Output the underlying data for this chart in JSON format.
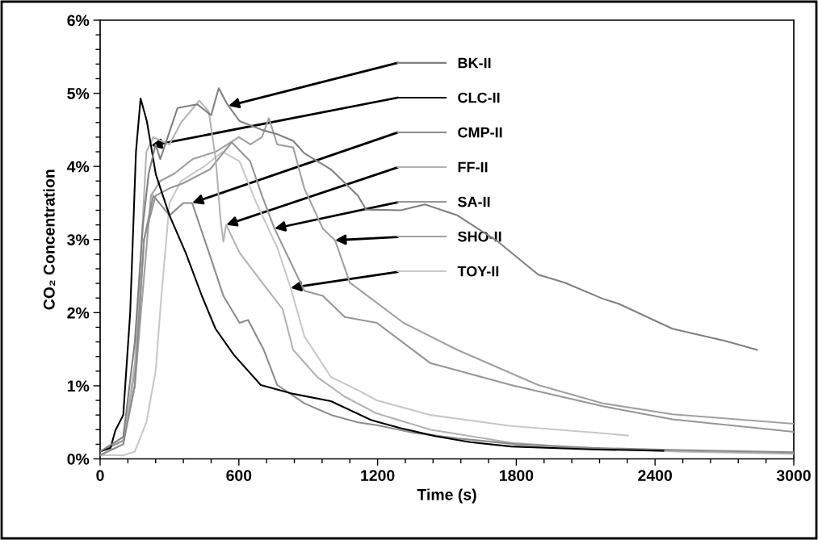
{
  "chart_data": {
    "type": "line",
    "xlabel": "Time (s)",
    "ylabel": "CO₂ Concentration",
    "xlim": [
      0,
      3000
    ],
    "xticks": [
      0,
      600,
      1200,
      1800,
      2400,
      3000
    ],
    "ylim": [
      0,
      6
    ],
    "yticks": [
      {
        "value": 0,
        "label": "0%"
      },
      {
        "value": 1,
        "label": "1%"
      },
      {
        "value": 2,
        "label": "2%"
      },
      {
        "value": 3,
        "label": "3%"
      },
      {
        "value": 4,
        "label": "4%"
      },
      {
        "value": 5,
        "label": "5%"
      },
      {
        "value": 6,
        "label": "6%"
      }
    ],
    "grid": false,
    "legend": "top",
    "marker": "none",
    "line_style": "solid",
    "series": [
      {
        "name": "BK-II",
        "color": "#808080",
        "x": [
          0,
          100,
          150,
          185,
          210,
          240,
          260,
          335,
          420,
          480,
          513,
          550,
          603,
          700,
          766,
          835,
          883,
          998,
          1115,
          1150,
          1300,
          1405,
          1545,
          1721,
          1895,
          2010,
          2174,
          2244,
          2475,
          2709,
          2841
        ],
        "values": [
          0.1,
          0.3,
          1.6,
          3.2,
          3.9,
          4.3,
          4.1,
          4.8,
          4.85,
          4.7,
          5.07,
          4.85,
          4.62,
          4.5,
          4.44,
          4.35,
          4.18,
          3.96,
          3.6,
          3.41,
          3.4,
          3.48,
          3.33,
          2.97,
          2.52,
          2.41,
          2.19,
          2.12,
          1.78,
          1.61,
          1.49
        ]
      },
      {
        "name": "CLC-II",
        "color": "#000000",
        "x": [
          0,
          45,
          66,
          100,
          130,
          155,
          175,
          202,
          241,
          300,
          370,
          440,
          499,
          579,
          695,
          835,
          998,
          1173,
          1300,
          1452,
          1600,
          1777,
          2126,
          2436
        ],
        "values": [
          0.1,
          0.15,
          0.39,
          0.6,
          2.0,
          4.2,
          4.93,
          4.62,
          3.89,
          3.33,
          2.82,
          2.23,
          1.78,
          1.42,
          1.01,
          0.89,
          0.79,
          0.53,
          0.42,
          0.31,
          0.23,
          0.17,
          0.13,
          0.11
        ]
      },
      {
        "name": "CMP-II",
        "color": "#8c8c8c",
        "x": [
          0,
          100,
          150,
          190,
          230,
          300,
          360,
          398,
          430,
          475,
          533,
          603,
          640,
          708,
          766,
          883,
          1000,
          1115,
          1197,
          1350,
          1545,
          1800,
          2126,
          2500,
          3000
        ],
        "values": [
          0.05,
          0.2,
          1.0,
          3.0,
          3.6,
          3.33,
          3.5,
          3.5,
          3.2,
          2.78,
          2.23,
          1.86,
          1.9,
          1.49,
          1.01,
          0.76,
          0.6,
          0.5,
          0.46,
          0.36,
          0.28,
          0.2,
          0.15,
          0.12,
          0.09
        ]
      },
      {
        "name": "FF-II",
        "color": "#b3b3b3",
        "x": [
          0,
          100,
          150,
          180,
          200,
          230,
          300,
          350,
          429,
          470,
          500,
          520,
          533,
          545,
          603,
          708,
          789,
          835,
          939,
          1058,
          1197,
          1428,
          1777,
          2126,
          2500,
          3000
        ],
        "values": [
          0.05,
          0.2,
          1.3,
          3.0,
          4.2,
          4.4,
          4.3,
          4.6,
          4.9,
          4.75,
          4.1,
          3.3,
          2.97,
          3.2,
          2.82,
          2.38,
          2.05,
          1.49,
          1.12,
          0.85,
          0.62,
          0.4,
          0.22,
          0.14,
          0.1,
          0.07
        ]
      },
      {
        "name": "SA-II",
        "color": "#969696",
        "x": [
          0,
          100,
          150,
          190,
          240,
          300,
          359,
          475,
          569,
          649,
          700,
          754,
          883,
          963,
          1058,
          1197,
          1428,
          1777,
          2174,
          2475,
          3000
        ],
        "values": [
          0.1,
          0.25,
          1.2,
          3.0,
          3.6,
          3.7,
          3.77,
          3.96,
          4.33,
          4.07,
          3.6,
          3.15,
          2.3,
          2.23,
          1.94,
          1.86,
          1.31,
          1.01,
          0.72,
          0.54,
          0.37
        ]
      },
      {
        "name": "SHO-II",
        "color": "#a0a0a0",
        "x": [
          0,
          100,
          150,
          190,
          220,
          260,
          320,
          400,
          500,
          600,
          650,
          700,
          730,
          766,
          835,
          883,
          963,
          1016,
          1080,
          1312,
          1545,
          1895,
          2174,
          2475,
          3000
        ],
        "values": [
          0.1,
          0.25,
          1.0,
          2.5,
          3.6,
          3.8,
          3.9,
          4.1,
          4.2,
          4.4,
          4.3,
          4.4,
          4.66,
          4.3,
          4.26,
          3.7,
          3.15,
          2.99,
          2.41,
          1.86,
          1.49,
          1.01,
          0.76,
          0.61,
          0.48
        ]
      },
      {
        "name": "TOY-II",
        "color": "#c8c8c8",
        "x": [
          0,
          100,
          150,
          200,
          240,
          265,
          300,
          350,
          450,
          530,
          603,
          673,
          766,
          824,
          883,
          998,
          1115,
          1197,
          1428,
          1777,
          2174,
          2283
        ],
        "values": [
          0.05,
          0.05,
          0.1,
          0.5,
          1.2,
          2.23,
          3.5,
          3.8,
          4.0,
          4.2,
          4.07,
          3.52,
          2.89,
          2.34,
          1.68,
          1.12,
          0.94,
          0.8,
          0.6,
          0.45,
          0.35,
          0.32
        ]
      }
    ]
  }
}
